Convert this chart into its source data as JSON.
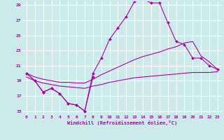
{
  "xlabel": "Windchill (Refroidissement éolien,°C)",
  "bg_color": "#cceaea",
  "line_color": "#aa00aa",
  "grid_color": "#ffffff",
  "xmin": -0.5,
  "xmax": 23.5,
  "ymin": 14.5,
  "ymax": 29.5,
  "yticks": [
    15,
    17,
    19,
    21,
    23,
    25,
    27,
    29
  ],
  "xticks": [
    0,
    1,
    2,
    3,
    4,
    5,
    6,
    7,
    8,
    9,
    10,
    11,
    12,
    13,
    14,
    15,
    16,
    17,
    18,
    19,
    20,
    21,
    22,
    23
  ],
  "lines": [
    {
      "x": [
        0,
        1,
        2,
        3,
        4,
        5,
        6,
        7,
        8
      ],
      "y": [
        20.0,
        19.0,
        17.5,
        18.0,
        17.3,
        16.0,
        15.8,
        15.0,
        19.5
      ],
      "marker": true
    },
    {
      "x": [
        0,
        1,
        2,
        3,
        4,
        5,
        6,
        7,
        8,
        9,
        10,
        11,
        12,
        13,
        14,
        15,
        16,
        17,
        18,
        19,
        20,
        21,
        22,
        23
      ],
      "y": [
        20.0,
        19.0,
        17.5,
        18.0,
        17.3,
        16.0,
        15.8,
        15.0,
        20.0,
        22.0,
        24.5,
        26.0,
        27.5,
        29.5,
        29.8,
        29.3,
        29.3,
        26.7,
        24.2,
        23.8,
        22.0,
        22.0,
        21.0,
        20.5
      ],
      "marker": true
    },
    {
      "x": [
        0,
        1,
        2,
        3,
        4,
        5,
        6,
        7,
        8,
        9,
        10,
        11,
        12,
        13,
        14,
        15,
        16,
        17,
        18,
        19,
        20,
        21,
        22,
        23
      ],
      "y": [
        20.0,
        19.5,
        19.2,
        19.0,
        18.8,
        18.8,
        18.7,
        18.7,
        19.2,
        19.8,
        20.3,
        20.8,
        21.3,
        21.8,
        22.2,
        22.5,
        22.8,
        23.2,
        23.5,
        24.0,
        24.2,
        22.3,
        21.5,
        20.5
      ],
      "marker": false
    },
    {
      "x": [
        0,
        1,
        2,
        3,
        4,
        5,
        6,
        7,
        8,
        9,
        10,
        11,
        12,
        13,
        14,
        15,
        16,
        17,
        18,
        19,
        20,
        21,
        22,
        23
      ],
      "y": [
        19.5,
        19.0,
        18.7,
        18.5,
        18.3,
        18.2,
        18.1,
        18.0,
        18.3,
        18.5,
        18.8,
        19.0,
        19.2,
        19.4,
        19.5,
        19.6,
        19.7,
        19.8,
        19.9,
        20.0,
        20.1,
        20.1,
        20.1,
        20.2
      ],
      "marker": false
    }
  ]
}
